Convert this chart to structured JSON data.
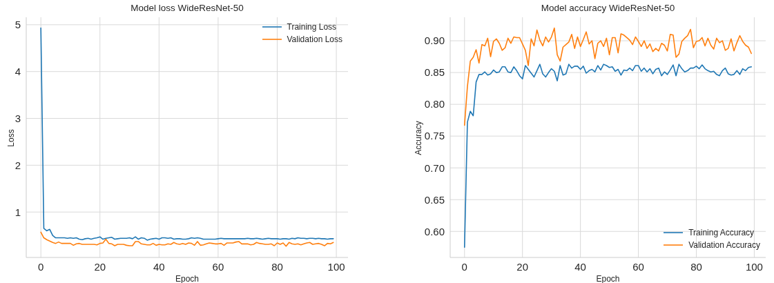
{
  "chart_data": [
    {
      "type": "line",
      "title": "Model loss WideResNet-50",
      "xlabel": "Epoch",
      "ylabel": "Loss",
      "x": [
        0,
        1,
        2,
        3,
        4,
        5,
        6,
        7,
        8,
        9,
        10,
        11,
        12,
        13,
        14,
        15,
        16,
        17,
        18,
        19,
        20,
        21,
        22,
        23,
        24,
        25,
        26,
        27,
        28,
        29,
        30,
        31,
        32,
        33,
        34,
        35,
        36,
        37,
        38,
        39,
        40,
        41,
        42,
        43,
        44,
        45,
        46,
        47,
        48,
        49,
        50,
        51,
        52,
        53,
        54,
        55,
        56,
        57,
        58,
        59,
        60,
        61,
        62,
        63,
        64,
        65,
        66,
        67,
        68,
        69,
        70,
        71,
        72,
        73,
        74,
        75,
        76,
        77,
        78,
        79,
        80,
        81,
        82,
        83,
        84,
        85,
        86,
        87,
        88,
        89,
        90,
        91,
        92,
        93,
        94,
        95,
        96,
        97,
        98,
        99
      ],
      "series": [
        {
          "name": "Training Loss",
          "color": "#1f77b4",
          "values": [
            4.93,
            0.65,
            0.6,
            0.63,
            0.5,
            0.45,
            0.45,
            0.45,
            0.45,
            0.44,
            0.45,
            0.44,
            0.45,
            0.42,
            0.41,
            0.43,
            0.44,
            0.42,
            0.44,
            0.45,
            0.47,
            0.42,
            0.44,
            0.45,
            0.46,
            0.42,
            0.43,
            0.44,
            0.44,
            0.44,
            0.45,
            0.43,
            0.47,
            0.42,
            0.45,
            0.44,
            0.4,
            0.42,
            0.43,
            0.44,
            0.42,
            0.45,
            0.45,
            0.44,
            0.45,
            0.42,
            0.43,
            0.43,
            0.42,
            0.42,
            0.43,
            0.45,
            0.44,
            0.45,
            0.44,
            0.42,
            0.42,
            0.42,
            0.42,
            0.42,
            0.43,
            0.44,
            0.43,
            0.43,
            0.43,
            0.43,
            0.43,
            0.43,
            0.43,
            0.43,
            0.44,
            0.43,
            0.43,
            0.44,
            0.43,
            0.42,
            0.43,
            0.44,
            0.43,
            0.43,
            0.43,
            0.42,
            0.43,
            0.43,
            0.42,
            0.44,
            0.43,
            0.45,
            0.44,
            0.44,
            0.43,
            0.44,
            0.44,
            0.43,
            0.44,
            0.43,
            0.43,
            0.42,
            0.43,
            0.43
          ]
        },
        {
          "name": "Validation Loss",
          "color": "#ff7f0e",
          "values": [
            0.57,
            0.45,
            0.41,
            0.38,
            0.35,
            0.33,
            0.36,
            0.33,
            0.33,
            0.33,
            0.33,
            0.29,
            0.32,
            0.33,
            0.31,
            0.31,
            0.31,
            0.31,
            0.31,
            0.3,
            0.33,
            0.34,
            0.42,
            0.33,
            0.32,
            0.28,
            0.31,
            0.31,
            0.31,
            0.29,
            0.28,
            0.28,
            0.37,
            0.37,
            0.32,
            0.31,
            0.3,
            0.3,
            0.33,
            0.29,
            0.31,
            0.3,
            0.3,
            0.32,
            0.31,
            0.35,
            0.32,
            0.31,
            0.33,
            0.31,
            0.34,
            0.33,
            0.29,
            0.37,
            0.29,
            0.3,
            0.32,
            0.34,
            0.33,
            0.32,
            0.32,
            0.33,
            0.29,
            0.34,
            0.34,
            0.34,
            0.36,
            0.37,
            0.32,
            0.32,
            0.32,
            0.3,
            0.31,
            0.35,
            0.33,
            0.32,
            0.31,
            0.31,
            0.32,
            0.28,
            0.34,
            0.31,
            0.34,
            0.27,
            0.35,
            0.32,
            0.31,
            0.32,
            0.3,
            0.32,
            0.34,
            0.35,
            0.31,
            0.32,
            0.33,
            0.31,
            0.28,
            0.33,
            0.32,
            0.35
          ]
        }
      ],
      "xlim": [
        -4.95,
        103.95
      ],
      "xticks": [
        0,
        20,
        40,
        60,
        80,
        100
      ],
      "ylim": [
        0.03,
        5.16
      ],
      "yticks": [
        1,
        2,
        3,
        4,
        5
      ],
      "grid": true,
      "legend": "top right"
    },
    {
      "type": "line",
      "title": "Model accuracy WideResNet-50",
      "xlabel": "Epoch",
      "ylabel": "Accuracy",
      "x": [
        0,
        1,
        2,
        3,
        4,
        5,
        6,
        7,
        8,
        9,
        10,
        11,
        12,
        13,
        14,
        15,
        16,
        17,
        18,
        19,
        20,
        21,
        22,
        23,
        24,
        25,
        26,
        27,
        28,
        29,
        30,
        31,
        32,
        33,
        34,
        35,
        36,
        37,
        38,
        39,
        40,
        41,
        42,
        43,
        44,
        45,
        46,
        47,
        48,
        49,
        50,
        51,
        52,
        53,
        54,
        55,
        56,
        57,
        58,
        59,
        60,
        61,
        62,
        63,
        64,
        65,
        66,
        67,
        68,
        69,
        70,
        71,
        72,
        73,
        74,
        75,
        76,
        77,
        78,
        79,
        80,
        81,
        82,
        83,
        84,
        85,
        86,
        87,
        88,
        89,
        90,
        91,
        92,
        93,
        94,
        95,
        96,
        97,
        98,
        99
      ],
      "series": [
        {
          "name": "Training Accuracy",
          "color": "#1f77b4",
          "values": [
            0.575,
            0.772,
            0.789,
            0.782,
            0.835,
            0.847,
            0.847,
            0.851,
            0.846,
            0.848,
            0.854,
            0.85,
            0.851,
            0.859,
            0.859,
            0.851,
            0.85,
            0.859,
            0.853,
            0.845,
            0.84,
            0.861,
            0.855,
            0.849,
            0.843,
            0.853,
            0.863,
            0.848,
            0.843,
            0.85,
            0.856,
            0.852,
            0.837,
            0.861,
            0.846,
            0.848,
            0.863,
            0.857,
            0.86,
            0.86,
            0.855,
            0.86,
            0.849,
            0.853,
            0.855,
            0.851,
            0.861,
            0.854,
            0.863,
            0.861,
            0.858,
            0.859,
            0.852,
            0.855,
            0.846,
            0.854,
            0.853,
            0.857,
            0.853,
            0.861,
            0.861,
            0.852,
            0.857,
            0.851,
            0.856,
            0.848,
            0.855,
            0.857,
            0.845,
            0.851,
            0.847,
            0.854,
            0.862,
            0.845,
            0.863,
            0.856,
            0.851,
            0.853,
            0.857,
            0.857,
            0.86,
            0.856,
            0.862,
            0.856,
            0.853,
            0.851,
            0.852,
            0.847,
            0.845,
            0.853,
            0.857,
            0.848,
            0.846,
            0.847,
            0.853,
            0.847,
            0.856,
            0.853,
            0.858,
            0.859
          ]
        },
        {
          "name": "Validation Accuracy",
          "color": "#ff7f0e",
          "values": [
            0.767,
            0.828,
            0.868,
            0.874,
            0.886,
            0.865,
            0.894,
            0.892,
            0.904,
            0.875,
            0.899,
            0.903,
            0.896,
            0.885,
            0.889,
            0.904,
            0.896,
            0.906,
            0.905,
            0.905,
            0.895,
            0.885,
            0.861,
            0.903,
            0.892,
            0.917,
            0.901,
            0.892,
            0.906,
            0.898,
            0.906,
            0.92,
            0.878,
            0.868,
            0.89,
            0.894,
            0.898,
            0.91,
            0.888,
            0.906,
            0.891,
            0.902,
            0.914,
            0.895,
            0.9,
            0.872,
            0.896,
            0.9,
            0.891,
            0.904,
            0.878,
            0.905,
            0.905,
            0.881,
            0.911,
            0.909,
            0.905,
            0.901,
            0.894,
            0.906,
            0.899,
            0.891,
            0.9,
            0.888,
            0.895,
            0.883,
            0.888,
            0.884,
            0.896,
            0.893,
            0.884,
            0.91,
            0.909,
            0.874,
            0.879,
            0.899,
            0.904,
            0.908,
            0.918,
            0.889,
            0.899,
            0.9,
            0.905,
            0.892,
            0.904,
            0.893,
            0.887,
            0.904,
            0.897,
            0.9,
            0.885,
            0.888,
            0.903,
            0.884,
            0.897,
            0.908,
            0.899,
            0.893,
            0.89,
            0.88
          ]
        }
      ],
      "xlim": [
        -4.95,
        103.95
      ],
      "xticks": [
        0,
        20,
        40,
        60,
        80,
        100
      ],
      "ylim": [
        0.559,
        0.937
      ],
      "yticks": [
        {
          "value": 0.6,
          "label": "0.60"
        },
        {
          "value": 0.65,
          "label": "0.65"
        },
        {
          "value": 0.7,
          "label": "0.70"
        },
        {
          "value": 0.75,
          "label": "0.75"
        },
        {
          "value": 0.8,
          "label": "0.80"
        },
        {
          "value": 0.85,
          "label": "0.85"
        },
        {
          "value": 0.9,
          "label": "0.90"
        }
      ],
      "grid": true,
      "legend": "bottom right"
    }
  ]
}
